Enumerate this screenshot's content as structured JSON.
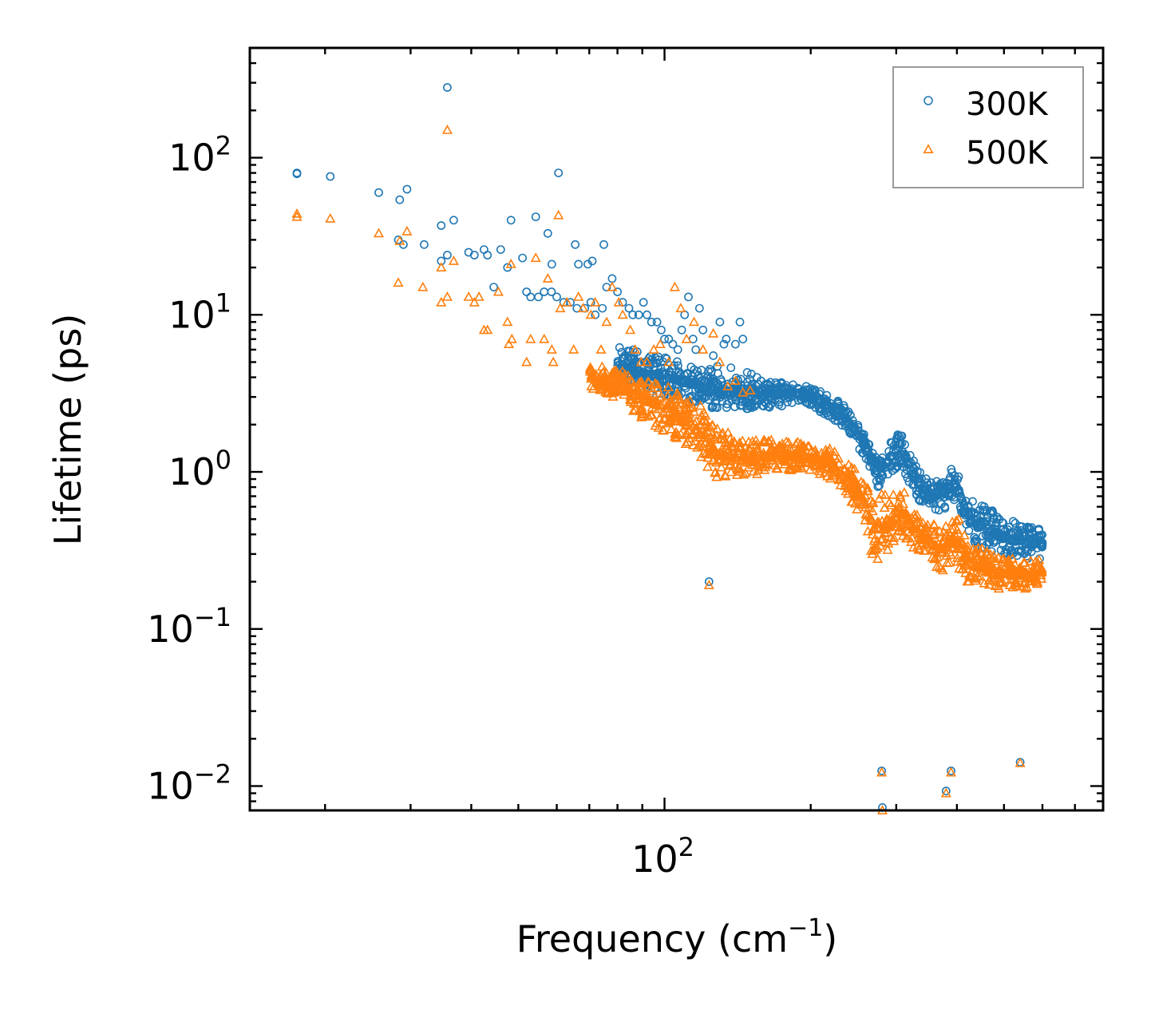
{
  "chart_data": {
    "type": "scatter",
    "xscale": "log",
    "yscale": "log",
    "xlabel": "Frequency (cm",
    "xlabel_sup": "−1",
    "xlabel_end": ")",
    "ylabel": "Lifetime (ps)",
    "xlim": [
      14,
      800
    ],
    "ylim": [
      0.007,
      500
    ],
    "x_tick_labels": [
      {
        "base": "10",
        "exp": "2",
        "value": 100
      }
    ],
    "y_tick_labels": [
      {
        "base": "10",
        "exp": "2",
        "value": 100
      },
      {
        "base": "10",
        "exp": "1",
        "value": 10
      },
      {
        "base": "10",
        "exp": "0",
        "value": 1
      },
      {
        "base": "10",
        "exp": "−1",
        "value": 0.1
      },
      {
        "base": "10",
        "exp": "−2",
        "value": 0.01
      }
    ],
    "legend": {
      "position": "top-right",
      "entries": [
        "300K",
        "500K"
      ]
    },
    "colors": {
      "s300": "#1f77b4",
      "s500": "#ff7f0e"
    },
    "series": [
      {
        "name": "300K",
        "marker": "circle",
        "points": [
          [
            17.5,
            80
          ],
          [
            17.5,
            79
          ],
          [
            20.5,
            76
          ],
          [
            25.8,
            60
          ],
          [
            28.5,
            54
          ],
          [
            29.5,
            63
          ],
          [
            28.3,
            30
          ],
          [
            29.0,
            28
          ],
          [
            32.0,
            28
          ],
          [
            34.7,
            37
          ],
          [
            35.7,
            280
          ],
          [
            36.8,
            40
          ],
          [
            34.7,
            22
          ],
          [
            35.7,
            24
          ],
          [
            39.5,
            25
          ],
          [
            40.6,
            24
          ],
          [
            42.5,
            26
          ],
          [
            43.2,
            24
          ],
          [
            46.0,
            26
          ],
          [
            44.5,
            15
          ],
          [
            47.5,
            20
          ],
          [
            48.3,
            40
          ],
          [
            51.0,
            23
          ],
          [
            54.3,
            42
          ],
          [
            57.5,
            33
          ],
          [
            58.6,
            21
          ],
          [
            60.5,
            80
          ],
          [
            65.5,
            28
          ],
          [
            66.5,
            21
          ],
          [
            69.5,
            21
          ],
          [
            71.0,
            22
          ],
          [
            75.0,
            28
          ],
          [
            52.0,
            14
          ],
          [
            53.0,
            13
          ],
          [
            55.0,
            13
          ],
          [
            56.5,
            14
          ],
          [
            58.5,
            14
          ],
          [
            60.0,
            13
          ],
          [
            62.0,
            12
          ],
          [
            64.0,
            12
          ],
          [
            66.0,
            11
          ],
          [
            68.5,
            11
          ],
          [
            70.5,
            12
          ],
          [
            72.0,
            10
          ],
          [
            74.5,
            11
          ],
          [
            76.0,
            15
          ],
          [
            78.0,
            17
          ],
          [
            80.0,
            14
          ],
          [
            82.0,
            12
          ],
          [
            84.5,
            11
          ],
          [
            86.0,
            10
          ],
          [
            88.5,
            10
          ],
          [
            90.5,
            12
          ],
          [
            92.0,
            10
          ],
          [
            94.0,
            9
          ],
          [
            96.5,
            9
          ],
          [
            98.5,
            8
          ],
          [
            100.0,
            7
          ],
          [
            102.0,
            7
          ],
          [
            104.0,
            6.5
          ],
          [
            106.5,
            6
          ],
          [
            108.5,
            8
          ],
          [
            110.0,
            10
          ],
          [
            112.0,
            13
          ],
          [
            114.5,
            7
          ],
          [
            116.0,
            6
          ],
          [
            118.0,
            11
          ],
          [
            120.0,
            8
          ],
          [
            124.0,
            4.5
          ],
          [
            126.0,
            5.5
          ],
          [
            128.5,
            4.7
          ],
          [
            130.0,
            9
          ],
          [
            132.5,
            6.5
          ],
          [
            134.0,
            7
          ],
          [
            137.0,
            4.6
          ],
          [
            140.0,
            6.5
          ],
          [
            143.0,
            9
          ],
          [
            145.0,
            7
          ],
          [
            148.0,
            4.3
          ],
          [
            151.0,
            4.2
          ],
          [
            155.0,
            4.0
          ],
          [
            158.0,
            3.8
          ],
          [
            123.5,
            0.2
          ],
          [
            280.0,
            0.0125
          ],
          [
            281.0,
            0.0073
          ],
          [
            380.0,
            0.0093
          ],
          [
            389.0,
            0.0125
          ],
          [
            540.0,
            0.0142
          ]
        ],
        "band": [
          [
            80,
            3.6,
            6.8
          ],
          [
            90,
            3.2,
            5.6
          ],
          [
            100,
            3.0,
            5.4
          ],
          [
            110,
            2.8,
            5.0
          ],
          [
            120,
            2.6,
            4.6
          ],
          [
            130,
            2.5,
            4.2
          ],
          [
            150,
            2.5,
            4.0
          ],
          [
            170,
            2.6,
            3.8
          ],
          [
            190,
            2.7,
            3.7
          ],
          [
            200,
            2.6,
            3.5
          ],
          [
            215,
            2.3,
            3.2
          ],
          [
            230,
            2.0,
            2.8
          ],
          [
            245,
            1.6,
            2.3
          ],
          [
            260,
            1.2,
            1.8
          ],
          [
            270,
            0.85,
            1.35
          ],
          [
            275,
            0.8,
            1.3
          ],
          [
            290,
            0.95,
            1.5
          ],
          [
            305,
            1.1,
            1.8
          ],
          [
            312,
            1.0,
            1.7
          ],
          [
            325,
            0.75,
            1.2
          ],
          [
            340,
            0.6,
            1.0
          ],
          [
            355,
            0.5,
            0.9
          ],
          [
            370,
            0.55,
            0.95
          ],
          [
            385,
            0.6,
            1.0
          ],
          [
            395,
            0.6,
            1.1
          ],
          [
            405,
            0.55,
            0.95
          ],
          [
            420,
            0.4,
            0.7
          ],
          [
            440,
            0.33,
            0.62
          ],
          [
            460,
            0.32,
            0.6
          ],
          [
            480,
            0.3,
            0.55
          ],
          [
            500,
            0.3,
            0.5
          ],
          [
            520,
            0.28,
            0.5
          ],
          [
            540,
            0.28,
            0.47
          ],
          [
            560,
            0.28,
            0.45
          ],
          [
            580,
            0.28,
            0.44
          ],
          [
            600,
            0.28,
            0.45
          ]
        ]
      },
      {
        "name": "500K",
        "marker": "triangle",
        "points": [
          [
            17.5,
            44
          ],
          [
            17.5,
            42
          ],
          [
            20.5,
            41
          ],
          [
            25.8,
            33
          ],
          [
            28.5,
            29.5
          ],
          [
            29.5,
            34
          ],
          [
            28.3,
            16
          ],
          [
            31.8,
            15
          ],
          [
            34.7,
            20
          ],
          [
            35.7,
            150
          ],
          [
            36.8,
            22
          ],
          [
            34.7,
            12
          ],
          [
            35.7,
            13
          ],
          [
            39.5,
            13
          ],
          [
            40.6,
            12
          ],
          [
            41.5,
            13
          ],
          [
            42.5,
            8
          ],
          [
            43.2,
            8
          ],
          [
            45.5,
            14
          ],
          [
            47.5,
            9
          ],
          [
            48.3,
            21
          ],
          [
            48.5,
            7
          ],
          [
            47.8,
            6.5
          ],
          [
            52.0,
            5
          ],
          [
            53.0,
            7
          ],
          [
            54.3,
            23
          ],
          [
            56.5,
            7
          ],
          [
            57.5,
            17
          ],
          [
            58.6,
            6
          ],
          [
            60.5,
            43
          ],
          [
            59.0,
            5
          ],
          [
            61.0,
            11
          ],
          [
            63.0,
            12
          ],
          [
            65.0,
            6
          ],
          [
            66.5,
            13
          ],
          [
            68.0,
            11
          ],
          [
            70.5,
            10
          ],
          [
            72.0,
            12
          ],
          [
            74.0,
            6
          ],
          [
            76.0,
            9
          ],
          [
            78.0,
            15
          ],
          [
            80.5,
            12
          ],
          [
            82.0,
            10
          ],
          [
            85.0,
            8
          ],
          [
            87.0,
            6
          ],
          [
            89.5,
            5
          ],
          [
            92.0,
            5
          ],
          [
            95.0,
            6
          ],
          [
            98.0,
            6.5
          ],
          [
            102.0,
            5
          ],
          [
            105.0,
            15
          ],
          [
            108.0,
            11
          ],
          [
            111.0,
            7
          ],
          [
            115.0,
            9
          ],
          [
            120.0,
            6
          ],
          [
            123.5,
            0.19
          ],
          [
            126.0,
            7.6
          ],
          [
            130.0,
            5
          ],
          [
            135.0,
            3.5
          ],
          [
            140.0,
            3.8
          ],
          [
            145.0,
            3.2
          ],
          [
            150.0,
            3.3
          ],
          [
            280.0,
            0.0122
          ],
          [
            281.0,
            0.007
          ],
          [
            380.0,
            0.009
          ],
          [
            389.0,
            0.0122
          ],
          [
            540.0,
            0.014
          ]
        ],
        "band": [
          [
            70,
            3.2,
            5.0
          ],
          [
            80,
            2.8,
            4.5
          ],
          [
            90,
            2.2,
            4.0
          ],
          [
            100,
            1.8,
            3.6
          ],
          [
            110,
            1.5,
            3.0
          ],
          [
            120,
            1.1,
            2.6
          ],
          [
            125,
            0.95,
            2.2
          ],
          [
            130,
            0.9,
            1.9
          ],
          [
            140,
            0.9,
            1.7
          ],
          [
            150,
            0.95,
            1.6
          ],
          [
            170,
            1.0,
            1.6
          ],
          [
            190,
            1.0,
            1.55
          ],
          [
            200,
            1.0,
            1.5
          ],
          [
            215,
            0.95,
            1.45
          ],
          [
            230,
            0.8,
            1.3
          ],
          [
            245,
            0.6,
            1.1
          ],
          [
            260,
            0.45,
            0.85
          ],
          [
            270,
            0.25,
            0.75
          ],
          [
            290,
            0.3,
            0.7
          ],
          [
            305,
            0.4,
            0.8
          ],
          [
            312,
            0.38,
            0.75
          ],
          [
            325,
            0.33,
            0.6
          ],
          [
            340,
            0.3,
            0.52
          ],
          [
            355,
            0.26,
            0.48
          ],
          [
            370,
            0.22,
            0.45
          ],
          [
            385,
            0.24,
            0.5
          ],
          [
            395,
            0.25,
            0.55
          ],
          [
            405,
            0.24,
            0.5
          ],
          [
            420,
            0.2,
            0.4
          ],
          [
            440,
            0.19,
            0.33
          ],
          [
            460,
            0.19,
            0.32
          ],
          [
            480,
            0.18,
            0.3
          ],
          [
            500,
            0.18,
            0.29
          ],
          [
            520,
            0.18,
            0.28
          ],
          [
            540,
            0.18,
            0.28
          ],
          [
            560,
            0.18,
            0.27
          ],
          [
            580,
            0.19,
            0.27
          ],
          [
            600,
            0.2,
            0.28
          ]
        ]
      }
    ]
  }
}
